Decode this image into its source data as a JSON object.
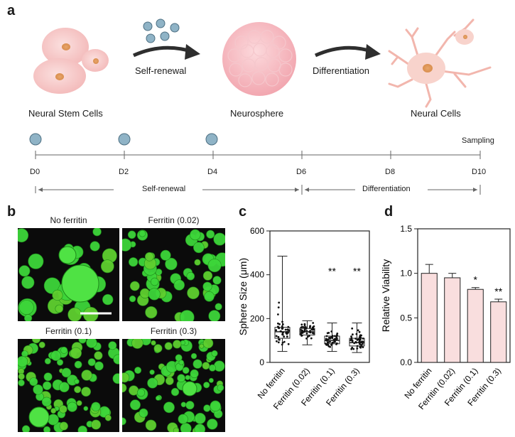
{
  "panel_a": {
    "letter": "a",
    "stages": [
      "Neural Stem Cells",
      "Neurosphere",
      "Neural Cells"
    ],
    "arrows": [
      "Self-renewal",
      "Differentiation"
    ],
    "timeline": {
      "days": [
        "D0",
        "D2",
        "D4",
        "D6",
        "D8",
        "D10"
      ],
      "sampling": "Sampling",
      "phase_left": "Self-renewal",
      "phase_right": "Differentiation"
    }
  },
  "panel_b": {
    "letter": "b",
    "images": [
      {
        "title": "No ferritin"
      },
      {
        "title": "Ferritin (0.02)"
      },
      {
        "title": "Ferritin (0.1)"
      },
      {
        "title": "Ferritin (0.3)"
      }
    ]
  },
  "panel_c": {
    "letter": "c",
    "chart_data": {
      "type": "box",
      "ylabel": "Sphere Size (μm)",
      "ylim": [
        0,
        600
      ],
      "yticks": [
        0,
        200,
        400,
        600
      ],
      "categories": [
        "No ferritin",
        "Ferritin (0.02)",
        "Ferritin (0.1)",
        "Ferritin (0.3)"
      ],
      "boxes": [
        {
          "min": 50,
          "q1": 110,
          "median": 140,
          "q3": 160,
          "max": 485,
          "sig": ""
        },
        {
          "min": 80,
          "q1": 125,
          "median": 140,
          "q3": 155,
          "max": 190,
          "sig": ""
        },
        {
          "min": 50,
          "q1": 85,
          "median": 100,
          "q3": 120,
          "max": 180,
          "sig": "**"
        },
        {
          "min": 45,
          "q1": 75,
          "median": 90,
          "q3": 110,
          "max": 180,
          "sig": "**"
        }
      ],
      "box_color": "#ffffff"
    }
  },
  "panel_d": {
    "letter": "d",
    "chart_data": {
      "type": "bar",
      "ylabel": "Relative Viability",
      "ylim": [
        0,
        1.5
      ],
      "yticks": [
        "0.0",
        "0.5",
        "1.0",
        "1.5"
      ],
      "categories": [
        "No ferritin",
        "Ferritin (0.02)",
        "Ferritin (0.1)",
        "Ferritin (0.3)"
      ],
      "values": [
        1.0,
        0.95,
        0.82,
        0.68
      ],
      "errors": [
        0.1,
        0.05,
        0.02,
        0.03
      ],
      "sig": [
        "",
        "",
        "*",
        "**"
      ],
      "bar_color": "#f9dede"
    }
  }
}
